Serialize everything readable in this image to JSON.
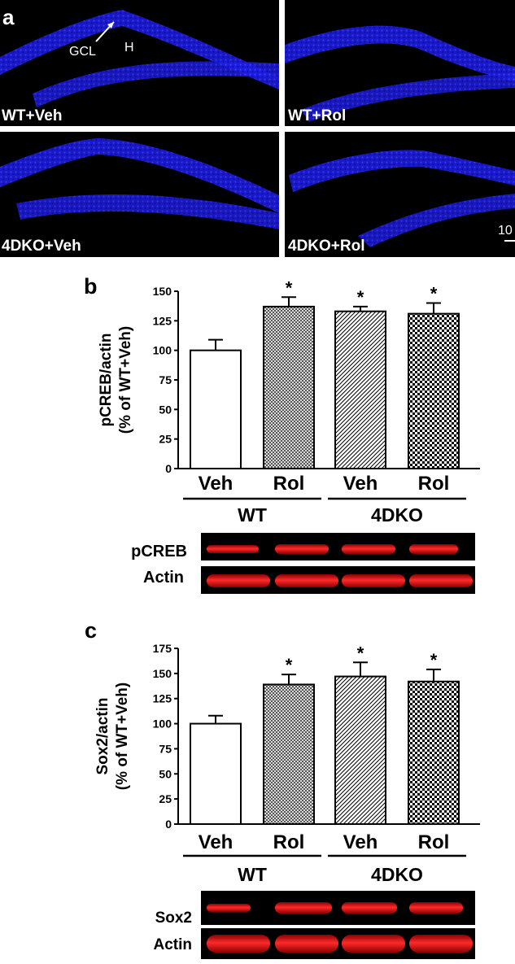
{
  "panel_a": {
    "letter": "a",
    "annotations": {
      "gcl": "GCL",
      "hilus": "H"
    },
    "images": [
      {
        "label": "WT+Veh"
      },
      {
        "label": "WT+Rol"
      },
      {
        "label": "4DKO+Veh"
      },
      {
        "label": "4DKO+Rol"
      }
    ],
    "scale_bar_text": "10"
  },
  "chart_data": [
    {
      "type": "bar",
      "panel": "b",
      "ylabel": "pCREB/actin",
      "ylabel2": "(% of WT+Veh)",
      "ylim": [
        0,
        150
      ],
      "yticks": [
        0,
        25,
        50,
        75,
        100,
        125,
        150
      ],
      "categories": [
        "Veh",
        "Rol",
        "Veh",
        "Rol"
      ],
      "values": [
        100,
        137,
        133,
        131
      ],
      "errors": [
        9,
        8,
        4,
        9
      ],
      "significance": [
        "",
        "*",
        "*",
        "*"
      ],
      "fill_patterns": [
        "white",
        "crosshatch",
        "diagonal",
        "checker"
      ],
      "groups": [
        {
          "label": "WT",
          "categories": [
            0,
            1
          ]
        },
        {
          "label": "4DKO",
          "categories": [
            2,
            3
          ]
        }
      ],
      "blot_labels": [
        "pCREB",
        "Actin"
      ]
    },
    {
      "type": "bar",
      "panel": "c",
      "ylabel": "Sox2/actin",
      "ylabel2": "(% of WT+Veh)",
      "ylim": [
        0,
        175
      ],
      "yticks": [
        0,
        25,
        50,
        75,
        100,
        125,
        150,
        175
      ],
      "categories": [
        "Veh",
        "Rol",
        "Veh",
        "Rol"
      ],
      "values": [
        100,
        139,
        147,
        142
      ],
      "errors": [
        8,
        10,
        14,
        12
      ],
      "significance": [
        "",
        "*",
        "*",
        "*"
      ],
      "fill_patterns": [
        "white",
        "crosshatch",
        "diagonal",
        "checker"
      ],
      "groups": [
        {
          "label": "WT",
          "categories": [
            0,
            1
          ]
        },
        {
          "label": "4DKO",
          "categories": [
            2,
            3
          ]
        }
      ],
      "blot_labels": [
        "Sox2",
        "Actin"
      ]
    }
  ]
}
